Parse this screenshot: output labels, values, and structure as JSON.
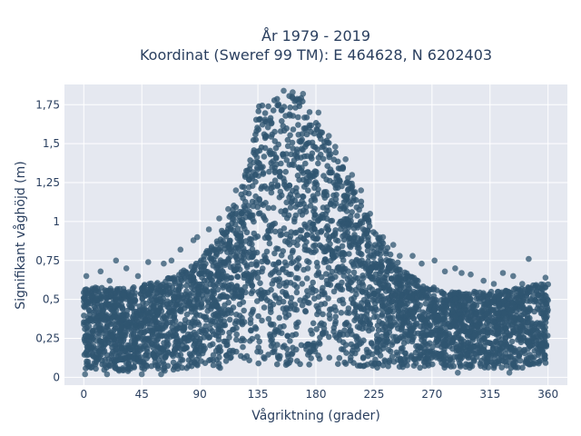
{
  "chart_data": {
    "type": "scatter",
    "title": "År 1979 - 2019",
    "subtitle": "Koordinat (Sweref 99 TM): E 464628, N 6202403",
    "xlabel": "Vågriktning (grader)",
    "ylabel": "Signifikant våghöjd (m)",
    "xlim": [
      -15,
      375
    ],
    "ylim": [
      -0.05,
      1.88
    ],
    "xticks": [
      0,
      45,
      90,
      135,
      180,
      225,
      270,
      315,
      360
    ],
    "xtick_labels": [
      "0",
      "45",
      "90",
      "135",
      "180",
      "225",
      "270",
      "315",
      "360"
    ],
    "yticks": [
      0,
      0.25,
      0.5,
      0.75,
      1,
      1.25,
      1.5,
      1.75
    ],
    "ytick_labels": [
      "0",
      "0,25",
      "0,5",
      "0,75",
      "1",
      "1,25",
      "1,5",
      "1,75"
    ],
    "grid": true,
    "marker_color": "#2f5570",
    "plot_background": "#e5e8f0",
    "series": [
      {
        "name": "",
        "x": [
          0,
          10,
          20,
          30,
          40,
          50,
          60,
          70,
          80,
          90,
          100,
          110,
          120,
          130,
          135,
          140,
          150,
          160,
          170,
          180,
          190,
          200,
          210,
          220,
          230,
          240,
          250,
          260,
          270,
          280,
          290,
          300,
          310,
          320,
          330,
          340,
          350,
          360
        ],
        "ymin": [
          0.05,
          0.05,
          0.04,
          0.04,
          0.03,
          0.03,
          0.03,
          0.04,
          0.04,
          0.05,
          0.06,
          0.06,
          0.07,
          0.08,
          0.08,
          0.08,
          0.08,
          0.08,
          0.08,
          0.08,
          0.08,
          0.08,
          0.07,
          0.07,
          0.06,
          0.06,
          0.06,
          0.06,
          0.06,
          0.06,
          0.06,
          0.06,
          0.06,
          0.06,
          0.06,
          0.06,
          0.06,
          0.06
        ],
        "ymax": [
          0.58,
          0.58,
          0.57,
          0.57,
          0.58,
          0.6,
          0.62,
          0.66,
          0.7,
          0.75,
          0.86,
          0.98,
          1.18,
          1.45,
          1.78,
          1.8,
          1.8,
          1.82,
          1.8,
          1.65,
          1.52,
          1.38,
          1.22,
          1.05,
          0.9,
          0.78,
          0.68,
          0.62,
          0.58,
          0.56,
          0.55,
          0.55,
          0.55,
          0.55,
          0.56,
          0.58,
          0.6,
          0.6
        ],
        "outliers": [
          [
            2,
            0.65
          ],
          [
            13,
            0.68
          ],
          [
            20,
            0.62
          ],
          [
            25,
            0.75
          ],
          [
            33,
            0.7
          ],
          [
            42,
            0.65
          ],
          [
            50,
            0.74
          ],
          [
            62,
            0.73
          ],
          [
            68,
            0.75
          ],
          [
            75,
            0.82
          ],
          [
            85,
            0.88
          ],
          [
            88,
            0.9
          ],
          [
            97,
            0.95
          ],
          [
            105,
            1.02
          ],
          [
            112,
            1.08
          ],
          [
            118,
            1.2
          ],
          [
            125,
            1.3
          ],
          [
            128,
            1.22
          ],
          [
            132,
            1.38
          ],
          [
            155,
            1.84
          ],
          [
            162,
            1.83
          ],
          [
            170,
            1.82
          ],
          [
            182,
            1.7
          ],
          [
            190,
            1.55
          ],
          [
            195,
            1.48
          ],
          [
            203,
            1.4
          ],
          [
            208,
            1.3
          ],
          [
            215,
            1.2
          ],
          [
            222,
            1.05
          ],
          [
            232,
            0.9
          ],
          [
            240,
            0.85
          ],
          [
            245,
            0.78
          ],
          [
            255,
            0.78
          ],
          [
            262,
            0.73
          ],
          [
            272,
            0.75
          ],
          [
            280,
            0.68
          ],
          [
            288,
            0.7
          ],
          [
            293,
            0.67
          ],
          [
            300,
            0.66
          ],
          [
            310,
            0.62
          ],
          [
            318,
            0.6
          ],
          [
            325,
            0.67
          ],
          [
            333,
            0.65
          ],
          [
            340,
            0.6
          ],
          [
            345,
            0.76
          ],
          [
            352,
            0.58
          ],
          [
            358,
            0.64
          ],
          [
            1,
            0.02
          ],
          [
            18,
            0.02
          ],
          [
            45,
            0.02
          ],
          [
            60,
            0.02
          ],
          [
            290,
            0.03
          ],
          [
            330,
            0.03
          ]
        ]
      }
    ]
  }
}
